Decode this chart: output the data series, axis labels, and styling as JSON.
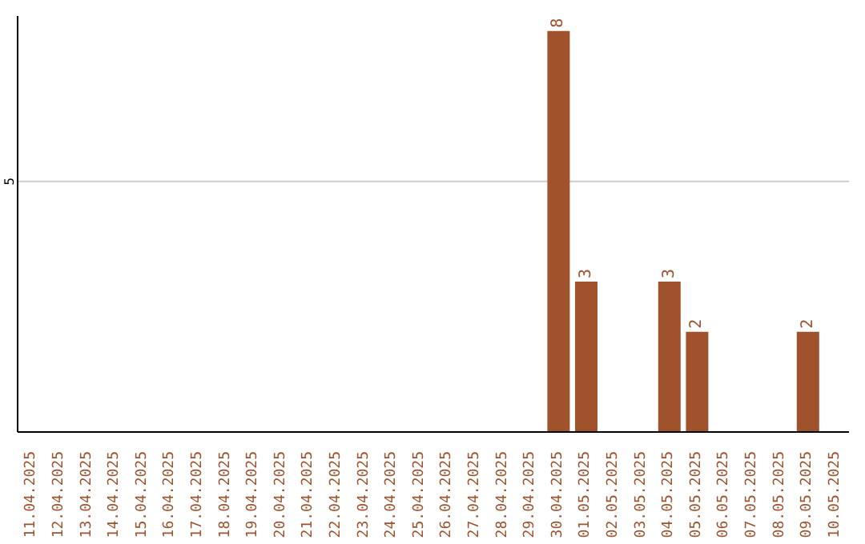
{
  "chart_data": {
    "type": "bar",
    "categories": [
      "11.04.2025",
      "12.04.2025",
      "13.04.2025",
      "14.04.2025",
      "15.04.2025",
      "16.04.2025",
      "17.04.2025",
      "18.04.2025",
      "19.04.2025",
      "20.04.2025",
      "21.04.2025",
      "22.04.2025",
      "23.04.2025",
      "24.04.2025",
      "25.04.2025",
      "26.04.2025",
      "27.04.2025",
      "28.04.2025",
      "29.04.2025",
      "30.04.2025",
      "01.05.2025",
      "02.05.2025",
      "03.05.2025",
      "04.05.2025",
      "05.05.2025",
      "06.05.2025",
      "07.05.2025",
      "08.05.2025",
      "09.05.2025",
      "10.05.2025"
    ],
    "values": [
      null,
      null,
      null,
      null,
      null,
      null,
      null,
      null,
      null,
      null,
      null,
      null,
      null,
      null,
      null,
      null,
      null,
      null,
      null,
      8,
      3,
      null,
      null,
      3,
      2,
      null,
      null,
      null,
      2,
      null
    ],
    "data_labels": true,
    "color": "#a0522d",
    "ylim": [
      0,
      8.3
    ],
    "yticks": [
      5
    ],
    "grid": "y"
  }
}
